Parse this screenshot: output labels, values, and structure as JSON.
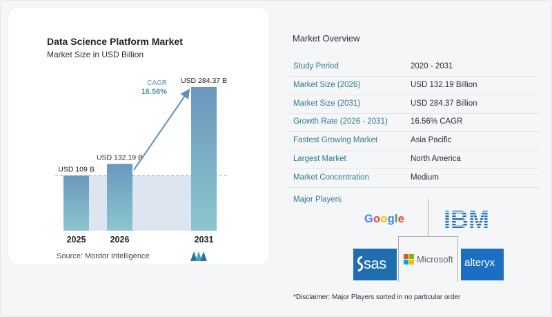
{
  "chart_data": {
    "type": "bar",
    "title": "Data Science Platform Market",
    "subtitle": "Market Size in USD Billion",
    "categories": [
      "2025",
      "2026",
      "2031"
    ],
    "values": [
      109,
      132.19,
      284.37
    ],
    "value_labels": [
      "USD 109 B",
      "USD 132.19 B",
      "USD 284.37 B"
    ],
    "cagr_label": "CAGR",
    "cagr_value": "16.56%",
    "source": "Source:  Mordor Intelligence",
    "colors": {
      "bar_top": "#6a98bd",
      "bar_bottom": "#8cc6cf",
      "area": "#dde6f0",
      "arrow": "#5d8fb6",
      "cagr_text": "#5d8fb6"
    }
  },
  "overview": {
    "title": "Market Overview",
    "rows": [
      {
        "label": "Study Period",
        "value": "2020 - 2031"
      },
      {
        "label": "Market Size (2026)",
        "value": "USD 132.19 Billion"
      },
      {
        "label": "Market Size (2031)",
        "value": "USD 284.37 Billion"
      },
      {
        "label": "Growth Rate (2026 - 2031)",
        "value": "16.56% CAGR"
      },
      {
        "label": "Fastest Growing Market",
        "value": "Asia Pacific"
      },
      {
        "label": "Largest Market",
        "value": "North America"
      },
      {
        "label": "Market Concentration",
        "value": "Medium"
      }
    ]
  },
  "players": {
    "title": "Major Players",
    "google": [
      "G",
      "o",
      "o",
      "g",
      "l",
      "e"
    ],
    "ibm": "IBM",
    "sas": "sas",
    "microsoft": "Microsoft",
    "alteryx": "alteryx"
  },
  "disclaimer": "*Disclaimer: Major Players sorted in no particular order"
}
